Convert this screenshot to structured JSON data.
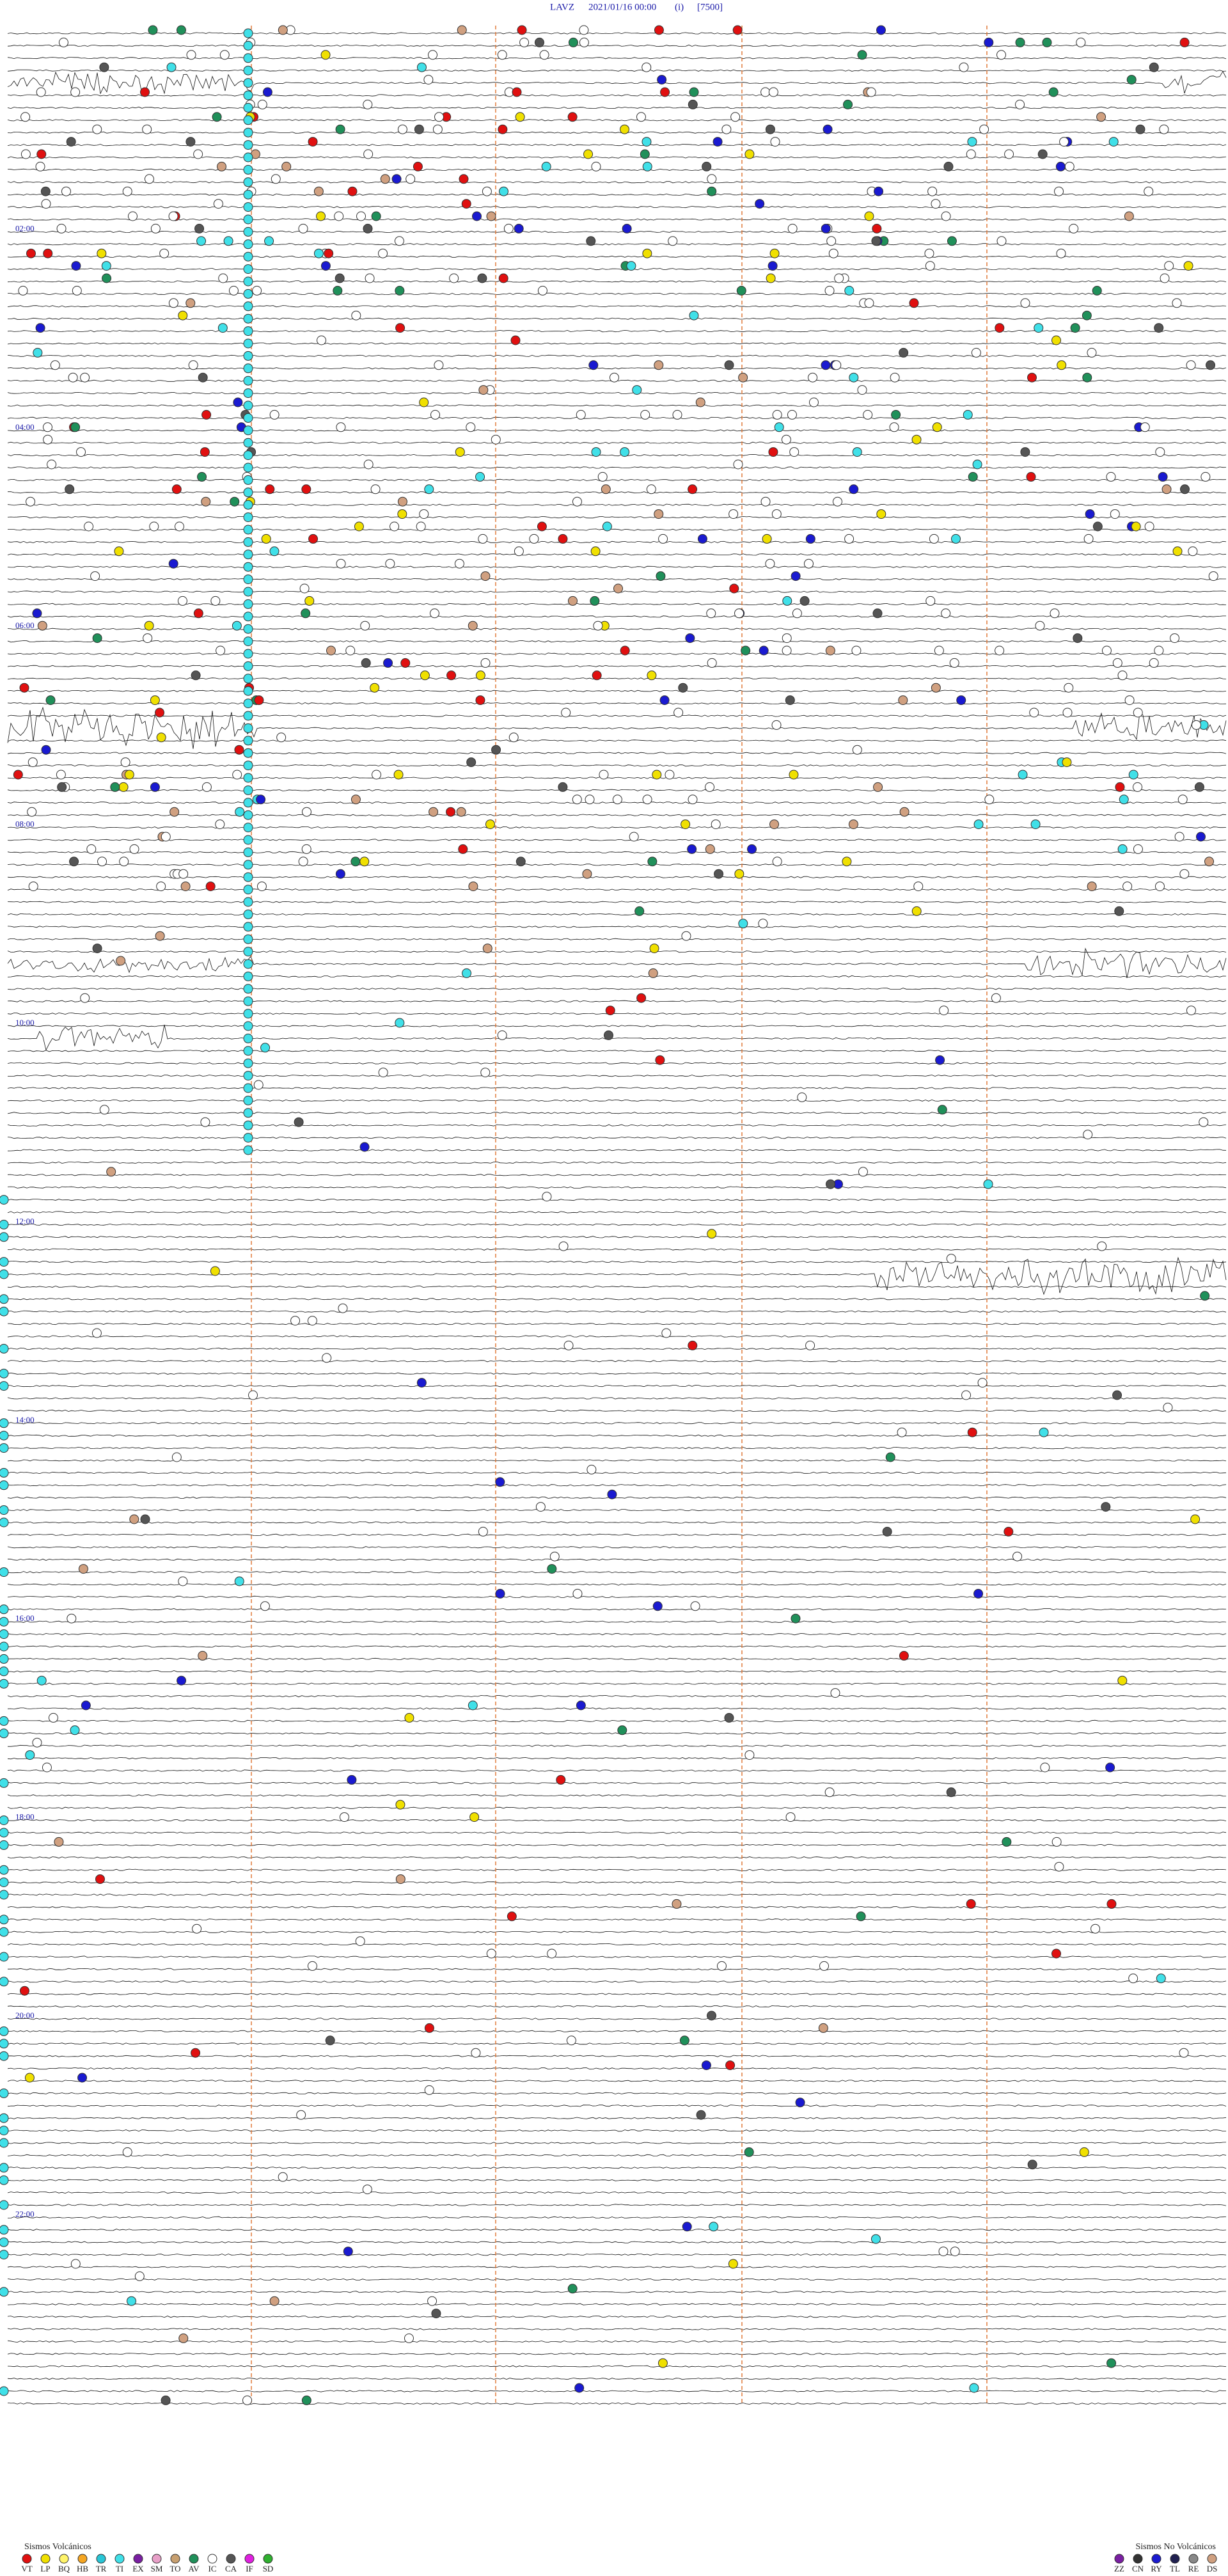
{
  "header": {
    "station": "LAVZ",
    "datetime": "2021/01/16 00:00",
    "channel": "(i)",
    "scale": "[7500]"
  },
  "hour_labels": [
    "02:00",
    "04:00",
    "06:00",
    "08:00",
    "10:00",
    "12:00",
    "14:00",
    "16:00",
    "18:00",
    "20:00",
    "22:00"
  ],
  "legend": {
    "volcanic": {
      "title": "Sismos Volcánicos",
      "items": [
        {
          "code": "VT",
          "color": "#e01010"
        },
        {
          "code": "LP",
          "color": "#f0e000"
        },
        {
          "code": "BQ",
          "color": "#fff46a"
        },
        {
          "code": "HB",
          "color": "#f5a623"
        },
        {
          "code": "TR",
          "color": "#29c6d6"
        },
        {
          "code": "TI",
          "color": "#40e0e8"
        },
        {
          "code": "EX",
          "color": "#7a1fa2"
        },
        {
          "code": "SM",
          "color": "#e8a0c8"
        },
        {
          "code": "TO",
          "color": "#c8a070"
        },
        {
          "code": "AV",
          "color": "#20905a"
        },
        {
          "code": "IC",
          "color": "#ffffff"
        },
        {
          "code": "CA",
          "color": "#555555"
        },
        {
          "code": "IF",
          "color": "#e020e0"
        },
        {
          "code": "SD",
          "color": "#30b030"
        }
      ]
    },
    "non_volcanic": {
      "title": "Sismos No Volcánicos",
      "items": [
        {
          "code": "ZZ",
          "color": "#7a1fa2"
        },
        {
          "code": "CN",
          "color": "#333333"
        },
        {
          "code": "RY",
          "color": "#1a1ad0"
        },
        {
          "code": "TL",
          "color": "#202050"
        },
        {
          "code": "RE",
          "color": "#888888"
        },
        {
          "code": "DS",
          "color": "#d0a080"
        }
      ]
    }
  }
}
